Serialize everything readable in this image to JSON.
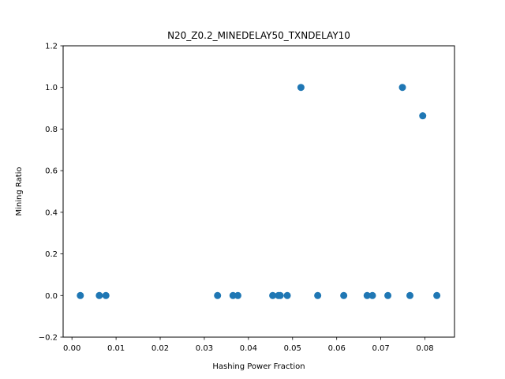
{
  "chart_data": {
    "type": "scatter",
    "title": "N20_Z0.2_MINEDELAY50_TXNDELAY10",
    "xlabel": "Hashing Power Fraction",
    "ylabel": "Mining Ratio",
    "xlim": [
      -0.002,
      0.0867
    ],
    "ylim": [
      -0.2,
      1.2
    ],
    "xticks": [
      0.0,
      0.01,
      0.02,
      0.03,
      0.04,
      0.05,
      0.06,
      0.07,
      0.08
    ],
    "xtick_labels": [
      "0.00",
      "0.01",
      "0.02",
      "0.03",
      "0.04",
      "0.05",
      "0.06",
      "0.07",
      "0.08"
    ],
    "yticks": [
      -0.2,
      0.0,
      0.2,
      0.4,
      0.6,
      0.8,
      1.0,
      1.2
    ],
    "ytick_labels": [
      "−0.2",
      "0.0",
      "0.2",
      "0.4",
      "0.6",
      "0.8",
      "1.0",
      "1.2"
    ],
    "grid": false,
    "marker_color": "#1f77b4",
    "points": [
      {
        "x": 0.0019,
        "y": 0.0
      },
      {
        "x": 0.0062,
        "y": 0.0
      },
      {
        "x": 0.0077,
        "y": 0.0
      },
      {
        "x": 0.033,
        "y": 0.0
      },
      {
        "x": 0.0365,
        "y": 0.0
      },
      {
        "x": 0.0376,
        "y": 0.0
      },
      {
        "x": 0.0455,
        "y": 0.0
      },
      {
        "x": 0.0468,
        "y": 0.0
      },
      {
        "x": 0.0472,
        "y": 0.0
      },
      {
        "x": 0.0488,
        "y": 0.0
      },
      {
        "x": 0.0519,
        "y": 1.0
      },
      {
        "x": 0.0557,
        "y": 0.0
      },
      {
        "x": 0.0616,
        "y": 0.0
      },
      {
        "x": 0.0669,
        "y": 0.0
      },
      {
        "x": 0.0681,
        "y": 0.0
      },
      {
        "x": 0.0716,
        "y": 0.0
      },
      {
        "x": 0.0749,
        "y": 1.0
      },
      {
        "x": 0.0766,
        "y": 0.0
      },
      {
        "x": 0.0795,
        "y": 0.8636
      },
      {
        "x": 0.0827,
        "y": 0.0
      }
    ]
  }
}
